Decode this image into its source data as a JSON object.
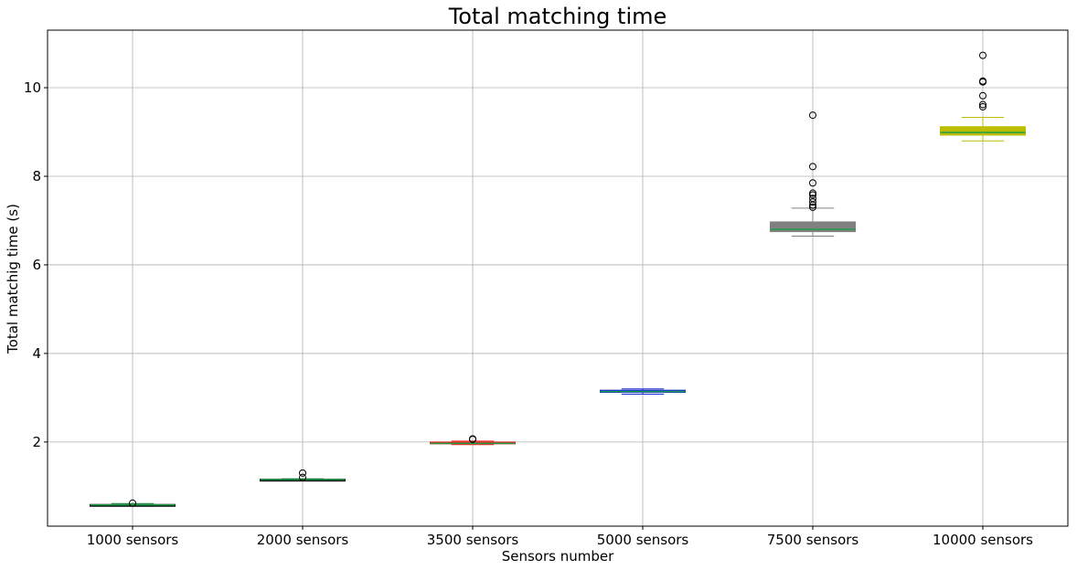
{
  "chart_data": {
    "type": "box",
    "title": "Total matching time",
    "xlabel": "Sensors number",
    "ylabel": "Total matchig time (s)",
    "ylim": [
      0.1,
      11.3
    ],
    "yticks": [
      2,
      4,
      6,
      8,
      10
    ],
    "grid": true,
    "categories": [
      "1000 sensors",
      "2000 sensors",
      "3500 sensors",
      "5000 sensors",
      "7500 sensors",
      "10000 sensors"
    ],
    "boxes": [
      {
        "category": "1000 sensors",
        "whisker_low": 0.55,
        "q1": 0.57,
        "median": 0.58,
        "q3": 0.59,
        "whisker_high": 0.61,
        "outliers": [
          0.62
        ],
        "box_color": "#000000",
        "median_color": "#1f9e4a",
        "whisker_color": "#1f9e4a"
      },
      {
        "category": "2000 sensors",
        "whisker_low": 1.13,
        "q1": 1.14,
        "median": 1.15,
        "q3": 1.16,
        "whisker_high": 1.17,
        "outliers": [
          1.2,
          1.3
        ],
        "box_color": "#000000",
        "median_color": "#1f9e4a",
        "whisker_color": "#1f9e4a"
      },
      {
        "category": "3500 sensors",
        "whisker_low": 1.94,
        "q1": 1.96,
        "median": 1.97,
        "q3": 2.0,
        "whisker_high": 2.02,
        "outliers": [
          2.06,
          2.07
        ],
        "box_color": "#e8291f",
        "median_color": "#1f9e4a",
        "whisker_color": "#e8291f"
      },
      {
        "category": "5000 sensors",
        "whisker_low": 3.08,
        "q1": 3.12,
        "median": 3.14,
        "q3": 3.17,
        "whisker_high": 3.2,
        "outliers": [],
        "box_color": "#1a2fd4",
        "median_color": "#1f9e4a",
        "whisker_color": "#1a2fd4"
      },
      {
        "category": "7500 sensors",
        "whisker_low": 6.65,
        "q1": 6.75,
        "median": 6.8,
        "q3": 6.97,
        "whisker_high": 7.28,
        "outliers": [
          7.3,
          7.35,
          7.42,
          7.5,
          7.58,
          7.62,
          7.85,
          8.22,
          9.38
        ],
        "box_color": "#808080",
        "median_color": "#1f9e4a",
        "whisker_color": "#808080"
      },
      {
        "category": "10000 sensors",
        "whisker_low": 8.8,
        "q1": 8.93,
        "median": 8.99,
        "q3": 9.12,
        "whisker_high": 9.33,
        "outliers": [
          9.57,
          9.62,
          9.82,
          10.13,
          10.15,
          10.73
        ],
        "box_color": "#bdbd00",
        "median_color": "#1f9e4a",
        "whisker_color": "#bdbd00"
      }
    ]
  }
}
